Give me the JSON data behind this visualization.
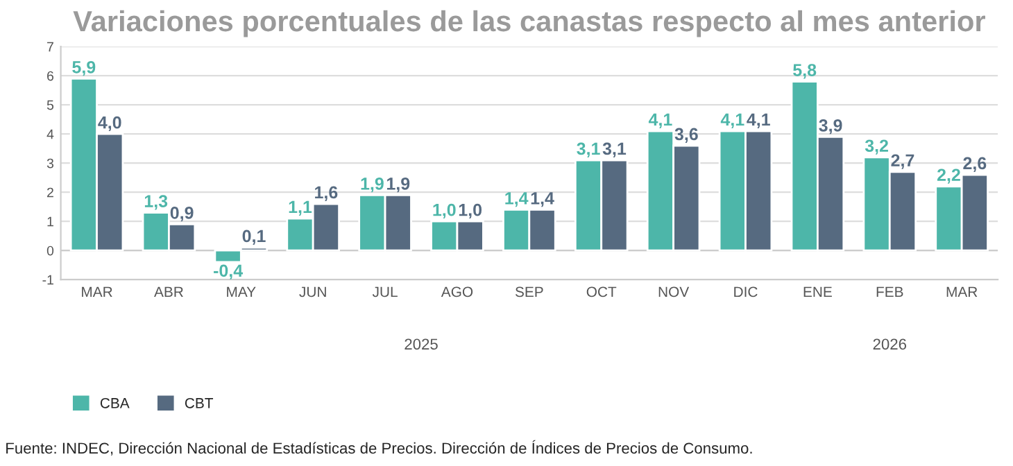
{
  "chart_data": {
    "type": "bar",
    "title": "Variaciones porcentuales de las canastas respecto al mes anterior",
    "categories": [
      "MAR",
      "ABR",
      "MAY",
      "JUN",
      "JUL",
      "AGO",
      "SEP",
      "OCT",
      "NOV",
      "DIC",
      "ENE",
      "FEB",
      "MAR"
    ],
    "series": [
      {
        "name": "CBA",
        "color": "#4db6a9",
        "values": [
          5.9,
          1.3,
          -0.4,
          1.1,
          1.9,
          1.0,
          1.4,
          3.1,
          4.1,
          4.1,
          5.8,
          3.2,
          2.2
        ],
        "value_labels": [
          "5,9",
          "1,3",
          "-0,4",
          "1,1",
          "1,9",
          "1,0",
          "1,4",
          "3,1",
          "4,1",
          "4,1",
          "5,8",
          "3,2",
          "2,2"
        ]
      },
      {
        "name": "CBT",
        "color": "#566a80",
        "values": [
          4.0,
          0.9,
          0.1,
          1.6,
          1.9,
          1.0,
          1.4,
          3.1,
          3.6,
          4.1,
          3.9,
          2.7,
          2.6
        ],
        "value_labels": [
          "4,0",
          "0,9",
          "0,1",
          "1,6",
          "1,9",
          "1,0",
          "1,4",
          "3,1",
          "3,6",
          "4,1",
          "3,9",
          "2,7",
          "2,6"
        ]
      }
    ],
    "ylim": [
      -1,
      7
    ],
    "yticks": [
      -1,
      0,
      1,
      2,
      3,
      4,
      5,
      6,
      7
    ],
    "grid": "y",
    "legend": "bottom left",
    "annotations": [
      "2025",
      "2026",
      "Fuente: INDEC, Dirección Nacional de Estadísticas de Precios. Dirección de Índices de Precios de Consumo."
    ]
  }
}
